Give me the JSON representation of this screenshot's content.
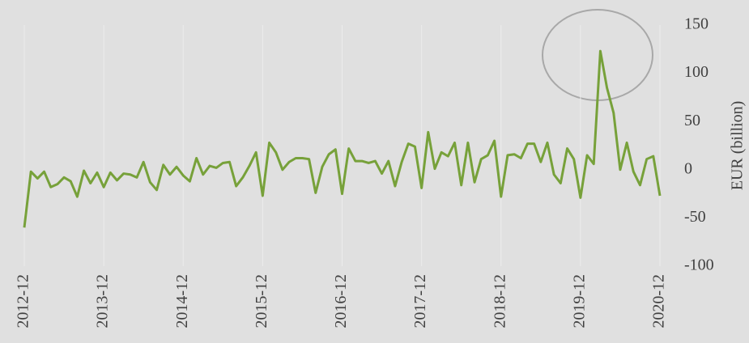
{
  "chart_data": {
    "type": "line",
    "y_label": "EUR (billion)",
    "x": [
      "2012-12",
      "2013-01",
      "2013-02",
      "2013-03",
      "2013-04",
      "2013-05",
      "2013-06",
      "2013-07",
      "2013-08",
      "2013-09",
      "2013-10",
      "2013-11",
      "2013-12",
      "2014-01",
      "2014-02",
      "2014-03",
      "2014-04",
      "2014-05",
      "2014-06",
      "2014-07",
      "2014-08",
      "2014-09",
      "2014-10",
      "2014-11",
      "2014-12",
      "2015-01",
      "2015-02",
      "2015-03",
      "2015-04",
      "2015-05",
      "2015-06",
      "2015-07",
      "2015-08",
      "2015-09",
      "2015-10",
      "2015-11",
      "2015-12",
      "2016-01",
      "2016-02",
      "2016-03",
      "2016-04",
      "2016-05",
      "2016-06",
      "2016-07",
      "2016-08",
      "2016-09",
      "2016-10",
      "2016-11",
      "2016-12",
      "2017-01",
      "2017-02",
      "2017-03",
      "2017-04",
      "2017-05",
      "2017-06",
      "2017-07",
      "2017-08",
      "2017-09",
      "2017-10",
      "2017-11",
      "2017-12",
      "2018-01",
      "2018-02",
      "2018-03",
      "2018-04",
      "2018-05",
      "2018-06",
      "2018-07",
      "2018-08",
      "2018-09",
      "2018-10",
      "2018-11",
      "2018-12",
      "2019-01",
      "2019-02",
      "2019-03",
      "2019-04",
      "2019-05",
      "2019-06",
      "2019-07",
      "2019-08",
      "2019-09",
      "2019-10",
      "2019-11",
      "2019-12",
      "2020-01",
      "2020-02",
      "2020-03",
      "2020-04",
      "2020-05",
      "2020-06",
      "2020-07",
      "2020-08",
      "2020-09",
      "2020-10",
      "2020-11",
      "2020-12"
    ],
    "series": [
      {
        "name": "EUR",
        "color": "#77a13a",
        "values": [
          -60,
          -2,
          -9,
          -2,
          -18,
          -15,
          -8,
          -12,
          -28,
          -1,
          -14,
          -3,
          -18,
          -3,
          -11,
          -4,
          -5,
          -8,
          8,
          -13,
          -21,
          5,
          -5,
          3,
          -6,
          -12,
          12,
          -5,
          4,
          2,
          7,
          8,
          -17,
          -8,
          4,
          18,
          -27,
          28,
          18,
          0,
          8,
          12,
          12,
          11,
          -24,
          3,
          16,
          21,
          -25,
          22,
          9,
          9,
          7,
          9,
          -4,
          9,
          -17,
          8,
          27,
          24,
          -19,
          39,
          1,
          18,
          14,
          28,
          -16,
          28,
          -13,
          11,
          15,
          30,
          -28,
          15,
          16,
          12,
          27,
          27,
          8,
          28,
          -5,
          -14,
          22,
          11,
          -29,
          15,
          6,
          123,
          85,
          59,
          0,
          28,
          -2,
          -16,
          11,
          14,
          -27
        ]
      }
    ],
    "ylim": [
      -100,
      150
    ],
    "yticks": [
      -100,
      -50,
      0,
      50,
      100,
      150
    ],
    "grid": true
  }
}
